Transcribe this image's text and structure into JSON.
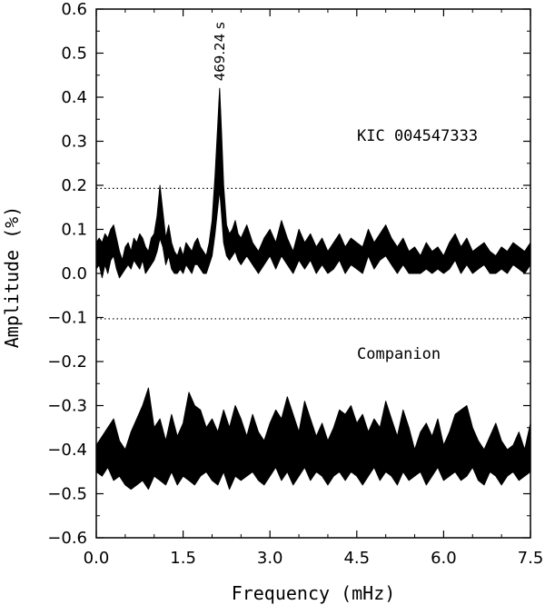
{
  "chart_data": {
    "type": "line",
    "xlabel": "Frequency (mHz)",
    "ylabel": "Amplitude (%)",
    "xlim": [
      0.0,
      7.5
    ],
    "ylim": [
      -0.6,
      0.6
    ],
    "x_ticks": [
      "0.0",
      "1.5",
      "3.0",
      "4.5",
      "6.0",
      "7.5"
    ],
    "x_tick_values": [
      0.0,
      1.5,
      3.0,
      4.5,
      6.0,
      7.5
    ],
    "y_ticks": [
      "0.6",
      "0.5",
      "0.4",
      "0.3",
      "0.2",
      "0.1",
      "0.0",
      "−0.1",
      "−0.2",
      "−0.3",
      "−0.4",
      "−0.5",
      "−0.6"
    ],
    "y_tick_values": [
      0.6,
      0.5,
      0.4,
      0.3,
      0.2,
      0.1,
      0.0,
      -0.1,
      -0.2,
      -0.3,
      -0.4,
      -0.5,
      -0.6
    ],
    "grid": false,
    "threshold_lines": [
      0.193,
      -0.103
    ],
    "annotations": {
      "star_label": "KIC 004547333",
      "companion_label": "Companion",
      "peak_label": "469.24 s",
      "peak_x": 2.13,
      "peak_y": 0.42
    },
    "series": [
      {
        "x": [
          0.0,
          0.05,
          0.1,
          0.15,
          0.2,
          0.25,
          0.3,
          0.35,
          0.4,
          0.45,
          0.5,
          0.55,
          0.6,
          0.65,
          0.7,
          0.75,
          0.8,
          0.85,
          0.9,
          0.95,
          1.0,
          1.05,
          1.1,
          1.15,
          1.2,
          1.25,
          1.3,
          1.35,
          1.4,
          1.45,
          1.5,
          1.55,
          1.6,
          1.65,
          1.7,
          1.75,
          1.8,
          1.85,
          1.9,
          1.95,
          2.0,
          2.05,
          2.1,
          2.13,
          2.16,
          2.2,
          2.25,
          2.3,
          2.35,
          2.4,
          2.45,
          2.5,
          2.6,
          2.7,
          2.8,
          2.9,
          3.0,
          3.1,
          3.2,
          3.3,
          3.4,
          3.5,
          3.6,
          3.7,
          3.8,
          3.9,
          4.0,
          4.1,
          4.2,
          4.3,
          4.4,
          4.5,
          4.6,
          4.7,
          4.8,
          4.9,
          5.0,
          5.1,
          5.2,
          5.3,
          5.4,
          5.5,
          5.6,
          5.7,
          5.8,
          5.9,
          6.0,
          6.1,
          6.2,
          6.3,
          6.4,
          6.5,
          6.6,
          6.7,
          6.8,
          6.9,
          7.0,
          7.1,
          7.2,
          7.3,
          7.4,
          7.5
        ],
        "upper": [
          0.07,
          0.08,
          0.07,
          0.09,
          0.08,
          0.1,
          0.11,
          0.08,
          0.05,
          0.03,
          0.06,
          0.07,
          0.05,
          0.08,
          0.07,
          0.09,
          0.08,
          0.06,
          0.05,
          0.08,
          0.09,
          0.13,
          0.2,
          0.14,
          0.08,
          0.11,
          0.07,
          0.05,
          0.04,
          0.06,
          0.04,
          0.07,
          0.06,
          0.05,
          0.07,
          0.08,
          0.06,
          0.05,
          0.04,
          0.07,
          0.12,
          0.22,
          0.34,
          0.42,
          0.33,
          0.2,
          0.11,
          0.09,
          0.1,
          0.12,
          0.09,
          0.08,
          0.11,
          0.07,
          0.05,
          0.08,
          0.1,
          0.07,
          0.12,
          0.08,
          0.05,
          0.1,
          0.07,
          0.09,
          0.06,
          0.08,
          0.05,
          0.07,
          0.09,
          0.06,
          0.08,
          0.07,
          0.06,
          0.1,
          0.07,
          0.09,
          0.11,
          0.08,
          0.06,
          0.08,
          0.05,
          0.06,
          0.04,
          0.07,
          0.05,
          0.06,
          0.04,
          0.07,
          0.09,
          0.06,
          0.08,
          0.05,
          0.06,
          0.07,
          0.05,
          0.04,
          0.06,
          0.05,
          0.07,
          0.06,
          0.05,
          0.07
        ],
        "lower": [
          0.01,
          0.02,
          -0.01,
          0.02,
          0.0,
          0.03,
          0.04,
          0.01,
          -0.01,
          0.0,
          0.01,
          0.02,
          0.01,
          0.03,
          0.02,
          0.01,
          0.03,
          0.0,
          0.01,
          0.02,
          0.03,
          0.05,
          0.08,
          0.06,
          0.02,
          0.04,
          0.01,
          0.0,
          0.0,
          0.01,
          0.0,
          0.02,
          0.01,
          0.0,
          0.02,
          0.02,
          0.01,
          0.0,
          0.0,
          0.02,
          0.04,
          0.09,
          0.15,
          0.19,
          0.14,
          0.07,
          0.04,
          0.03,
          0.04,
          0.05,
          0.03,
          0.02,
          0.04,
          0.02,
          0.0,
          0.02,
          0.04,
          0.01,
          0.04,
          0.02,
          0.0,
          0.03,
          0.01,
          0.03,
          0.0,
          0.02,
          0.0,
          0.01,
          0.03,
          0.0,
          0.02,
          0.01,
          0.0,
          0.04,
          0.01,
          0.03,
          0.04,
          0.02,
          0.0,
          0.02,
          0.0,
          0.0,
          0.0,
          0.01,
          0.0,
          0.01,
          0.0,
          0.01,
          0.03,
          0.0,
          0.02,
          0.0,
          0.01,
          0.02,
          0.0,
          0.0,
          0.01,
          0.0,
          0.02,
          0.01,
          0.0,
          0.02
        ]
      },
      {
        "x": [
          0.0,
          0.1,
          0.2,
          0.3,
          0.4,
          0.5,
          0.6,
          0.7,
          0.8,
          0.9,
          1.0,
          1.1,
          1.2,
          1.3,
          1.4,
          1.5,
          1.6,
          1.7,
          1.8,
          1.9,
          2.0,
          2.1,
          2.2,
          2.3,
          2.4,
          2.5,
          2.6,
          2.7,
          2.8,
          2.9,
          3.0,
          3.1,
          3.2,
          3.3,
          3.4,
          3.5,
          3.6,
          3.7,
          3.8,
          3.9,
          4.0,
          4.1,
          4.2,
          4.3,
          4.4,
          4.5,
          4.6,
          4.7,
          4.8,
          4.9,
          5.0,
          5.1,
          5.2,
          5.3,
          5.4,
          5.5,
          5.6,
          5.7,
          5.8,
          5.9,
          6.0,
          6.1,
          6.2,
          6.3,
          6.4,
          6.5,
          6.6,
          6.7,
          6.8,
          6.9,
          7.0,
          7.1,
          7.2,
          7.3,
          7.4,
          7.5
        ],
        "upper": [
          -0.39,
          -0.37,
          -0.35,
          -0.33,
          -0.38,
          -0.4,
          -0.36,
          -0.33,
          -0.3,
          -0.26,
          -0.35,
          -0.33,
          -0.38,
          -0.32,
          -0.37,
          -0.34,
          -0.27,
          -0.3,
          -0.31,
          -0.35,
          -0.33,
          -0.36,
          -0.31,
          -0.35,
          -0.3,
          -0.33,
          -0.37,
          -0.32,
          -0.36,
          -0.38,
          -0.34,
          -0.31,
          -0.33,
          -0.28,
          -0.32,
          -0.36,
          -0.29,
          -0.33,
          -0.37,
          -0.34,
          -0.38,
          -0.35,
          -0.31,
          -0.32,
          -0.3,
          -0.34,
          -0.32,
          -0.36,
          -0.33,
          -0.35,
          -0.29,
          -0.33,
          -0.37,
          -0.31,
          -0.35,
          -0.4,
          -0.36,
          -0.34,
          -0.37,
          -0.33,
          -0.39,
          -0.36,
          -0.32,
          -0.31,
          -0.3,
          -0.35,
          -0.38,
          -0.4,
          -0.37,
          -0.34,
          -0.38,
          -0.4,
          -0.39,
          -0.36,
          -0.4,
          -0.34
        ],
        "lower": [
          -0.45,
          -0.46,
          -0.44,
          -0.47,
          -0.46,
          -0.48,
          -0.49,
          -0.48,
          -0.47,
          -0.49,
          -0.46,
          -0.47,
          -0.48,
          -0.45,
          -0.48,
          -0.46,
          -0.47,
          -0.48,
          -0.46,
          -0.45,
          -0.47,
          -0.48,
          -0.45,
          -0.49,
          -0.46,
          -0.47,
          -0.46,
          -0.45,
          -0.47,
          -0.48,
          -0.46,
          -0.44,
          -0.47,
          -0.45,
          -0.48,
          -0.46,
          -0.44,
          -0.47,
          -0.45,
          -0.46,
          -0.48,
          -0.46,
          -0.45,
          -0.47,
          -0.45,
          -0.46,
          -0.48,
          -0.46,
          -0.44,
          -0.47,
          -0.45,
          -0.46,
          -0.48,
          -0.45,
          -0.47,
          -0.46,
          -0.45,
          -0.48,
          -0.46,
          -0.44,
          -0.47,
          -0.46,
          -0.45,
          -0.47,
          -0.46,
          -0.44,
          -0.47,
          -0.48,
          -0.45,
          -0.46,
          -0.48,
          -0.46,
          -0.45,
          -0.47,
          -0.46,
          -0.45
        ]
      }
    ]
  }
}
